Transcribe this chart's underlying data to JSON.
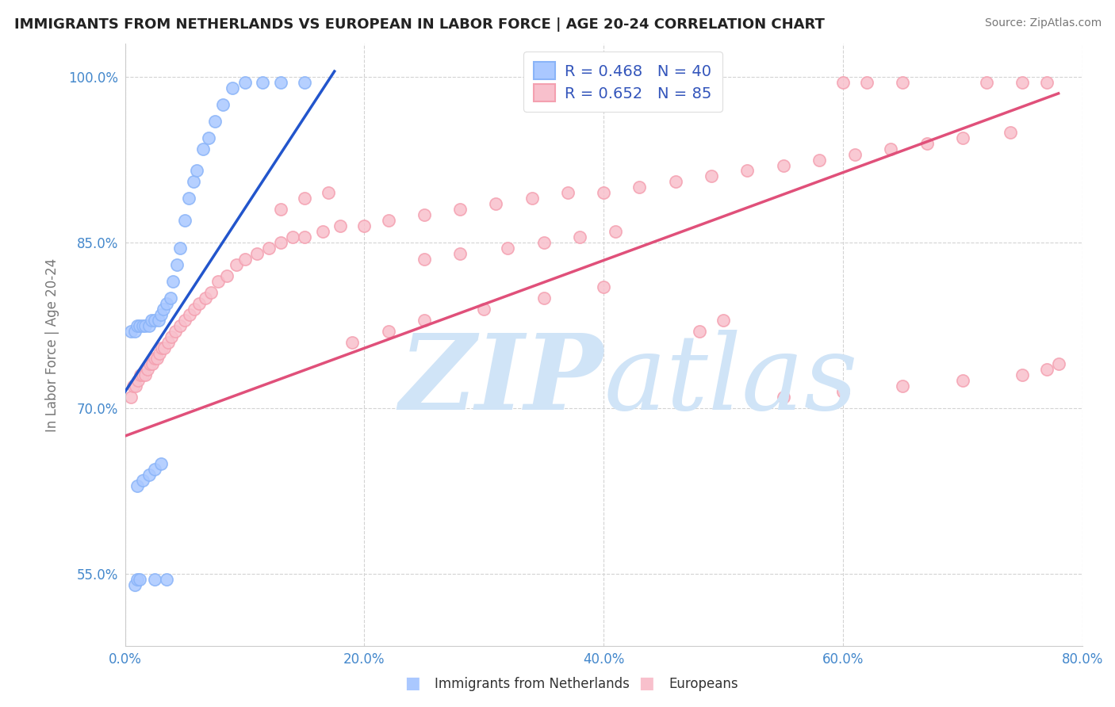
{
  "title": "IMMIGRANTS FROM NETHERLANDS VS EUROPEAN IN LABOR FORCE | AGE 20-24 CORRELATION CHART",
  "source": "Source: ZipAtlas.com",
  "ylabel": "In Labor Force | Age 20-24",
  "xlim": [
    0.0,
    0.8
  ],
  "ylim": [
    0.485,
    1.03
  ],
  "ytick_values": [
    0.55,
    0.7,
    0.85,
    1.0
  ],
  "xtick_values": [
    0.0,
    0.2,
    0.4,
    0.6,
    0.8
  ],
  "netherlands_color": "#8ab4f8",
  "netherlands_fill": "#aac8ff",
  "european_color": "#f4a0b0",
  "european_fill": "#f8c0cc",
  "netherlands_line_color": "#2255cc",
  "european_line_color": "#e0507a",
  "watermark_color": "#d0e4f7",
  "legend_text_color": "#3355bb",
  "tick_color": "#4488cc",
  "netherlands_x": [
    0.005,
    0.008,
    0.01,
    0.012,
    0.015,
    0.017,
    0.02,
    0.022,
    0.025,
    0.028,
    0.03,
    0.032,
    0.035,
    0.038,
    0.04,
    0.043,
    0.046,
    0.05,
    0.053,
    0.057,
    0.06,
    0.065,
    0.07,
    0.075,
    0.082,
    0.09,
    0.1,
    0.115,
    0.13,
    0.15,
    0.01,
    0.015,
    0.02,
    0.025,
    0.03,
    0.008,
    0.01,
    0.012,
    0.025,
    0.035
  ],
  "netherlands_y": [
    0.77,
    0.77,
    0.775,
    0.775,
    0.775,
    0.775,
    0.775,
    0.78,
    0.78,
    0.78,
    0.785,
    0.79,
    0.795,
    0.8,
    0.815,
    0.83,
    0.845,
    0.87,
    0.89,
    0.905,
    0.915,
    0.935,
    0.945,
    0.96,
    0.975,
    0.99,
    0.995,
    0.995,
    0.995,
    0.995,
    0.63,
    0.635,
    0.64,
    0.645,
    0.65,
    0.54,
    0.545,
    0.545,
    0.545,
    0.545
  ],
  "european_x": [
    0.005,
    0.007,
    0.009,
    0.011,
    0.013,
    0.015,
    0.017,
    0.019,
    0.021,
    0.023,
    0.025,
    0.027,
    0.029,
    0.031,
    0.033,
    0.036,
    0.039,
    0.042,
    0.046,
    0.05,
    0.054,
    0.058,
    0.062,
    0.067,
    0.072,
    0.078,
    0.085,
    0.093,
    0.1,
    0.11,
    0.12,
    0.13,
    0.14,
    0.15,
    0.165,
    0.18,
    0.2,
    0.22,
    0.25,
    0.28,
    0.31,
    0.34,
    0.37,
    0.4,
    0.43,
    0.46,
    0.49,
    0.52,
    0.55,
    0.58,
    0.61,
    0.64,
    0.67,
    0.7,
    0.74,
    0.19,
    0.22,
    0.25,
    0.3,
    0.35,
    0.4,
    0.13,
    0.15,
    0.17,
    0.48,
    0.5,
    0.6,
    0.62,
    0.65,
    0.72,
    0.75,
    0.77,
    0.55,
    0.6,
    0.65,
    0.7,
    0.75,
    0.77,
    0.78,
    0.25,
    0.28,
    0.32,
    0.35,
    0.38,
    0.41
  ],
  "european_y": [
    0.71,
    0.72,
    0.72,
    0.725,
    0.73,
    0.73,
    0.73,
    0.735,
    0.74,
    0.74,
    0.745,
    0.745,
    0.75,
    0.755,
    0.755,
    0.76,
    0.765,
    0.77,
    0.775,
    0.78,
    0.785,
    0.79,
    0.795,
    0.8,
    0.805,
    0.815,
    0.82,
    0.83,
    0.835,
    0.84,
    0.845,
    0.85,
    0.855,
    0.855,
    0.86,
    0.865,
    0.865,
    0.87,
    0.875,
    0.88,
    0.885,
    0.89,
    0.895,
    0.895,
    0.9,
    0.905,
    0.91,
    0.915,
    0.92,
    0.925,
    0.93,
    0.935,
    0.94,
    0.945,
    0.95,
    0.76,
    0.77,
    0.78,
    0.79,
    0.8,
    0.81,
    0.88,
    0.89,
    0.895,
    0.77,
    0.78,
    0.995,
    0.995,
    0.995,
    0.995,
    0.995,
    0.995,
    0.71,
    0.715,
    0.72,
    0.725,
    0.73,
    0.735,
    0.74,
    0.835,
    0.84,
    0.845,
    0.85,
    0.855,
    0.86
  ]
}
